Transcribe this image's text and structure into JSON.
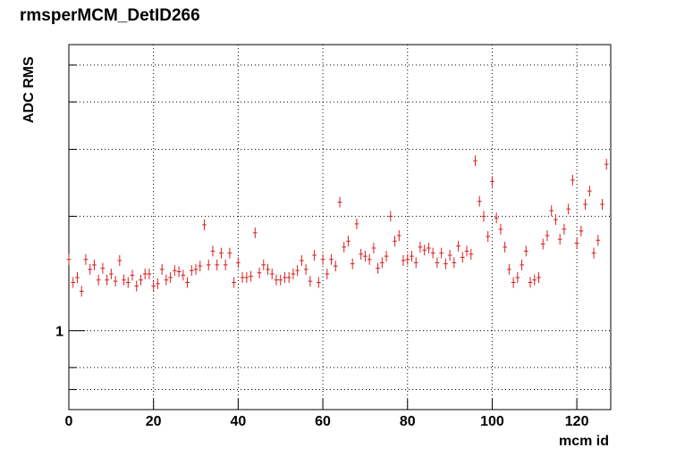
{
  "chart_data": {
    "type": "scatter",
    "title": "rmsperMCM_DetID266",
    "x_label": "mcm id",
    "y_label": "ADC RMS",
    "xlim": [
      0,
      128
    ],
    "xticks": [
      0,
      20,
      40,
      60,
      80,
      100,
      120
    ],
    "ylim": [
      0.62,
      5.66
    ],
    "log_y": true,
    "yticks": [
      1
    ],
    "minor_yticks": [
      0.7,
      0.8,
      2,
      3,
      4,
      5
    ],
    "grid": true,
    "series": [
      {
        "color": "#d42020",
        "x": [
          0,
          1,
          2,
          3,
          4,
          5,
          6,
          7,
          8,
          9,
          10,
          11,
          12,
          13,
          14,
          15,
          16,
          17,
          18,
          19,
          20,
          21,
          22,
          23,
          24,
          25,
          26,
          27,
          28,
          29,
          30,
          31,
          32,
          33,
          34,
          35,
          36,
          37,
          38,
          39,
          40,
          41,
          42,
          43,
          44,
          45,
          46,
          47,
          48,
          49,
          50,
          51,
          52,
          53,
          54,
          55,
          56,
          57,
          58,
          59,
          60,
          61,
          62,
          63,
          64,
          65,
          66,
          67,
          68,
          69,
          70,
          71,
          72,
          73,
          74,
          75,
          76,
          77,
          78,
          79,
          80,
          81,
          82,
          83,
          84,
          85,
          86,
          87,
          88,
          89,
          90,
          91,
          92,
          93,
          94,
          95,
          96,
          97,
          98,
          99,
          100,
          101,
          102,
          103,
          104,
          105,
          106,
          107,
          108,
          109,
          110,
          111,
          112,
          113,
          114,
          115,
          116,
          117,
          118,
          119,
          120,
          121,
          122,
          123,
          124,
          125,
          126,
          127
        ],
        "values": [
          1.54,
          1.34,
          1.38,
          1.27,
          1.54,
          1.45,
          1.49,
          1.36,
          1.46,
          1.36,
          1.41,
          1.35,
          1.53,
          1.36,
          1.34,
          1.4,
          1.31,
          1.36,
          1.41,
          1.41,
          1.31,
          1.33,
          1.45,
          1.36,
          1.38,
          1.44,
          1.43,
          1.4,
          1.34,
          1.44,
          1.45,
          1.48,
          1.9,
          1.49,
          1.62,
          1.49,
          1.6,
          1.49,
          1.6,
          1.34,
          1.51,
          1.38,
          1.38,
          1.39,
          1.81,
          1.42,
          1.49,
          1.45,
          1.41,
          1.36,
          1.36,
          1.38,
          1.38,
          1.41,
          1.44,
          1.53,
          1.45,
          1.35,
          1.58,
          1.34,
          1.54,
          1.41,
          1.54,
          1.48,
          2.18,
          1.66,
          1.72,
          1.5,
          1.91,
          1.59,
          1.57,
          1.54,
          1.65,
          1.46,
          1.51,
          1.57,
          2,
          1.72,
          1.78,
          1.53,
          1.54,
          1.57,
          1.51,
          1.66,
          1.63,
          1.65,
          1.6,
          1.51,
          1.6,
          1.5,
          1.58,
          1.51,
          1.67,
          1.56,
          1.62,
          1.59,
          2.8,
          2.19,
          2,
          1.77,
          2.47,
          1.98,
          1.85,
          1.66,
          1.45,
          1.34,
          1.38,
          1.49,
          1.62,
          1.34,
          1.36,
          1.38,
          1.69,
          1.78,
          2.07,
          1.96,
          1.74,
          1.85,
          2.09,
          2.49,
          1.7,
          1.83,
          2.15,
          2.33,
          1.6,
          1.73,
          2.15,
          2.74
        ]
      }
    ]
  }
}
